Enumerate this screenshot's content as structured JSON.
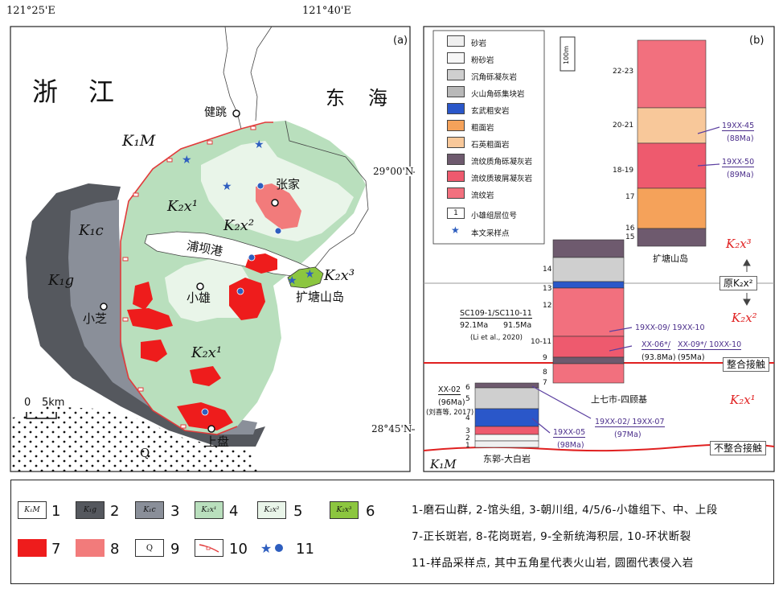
{
  "coords": {
    "lon_left": "121°25'E",
    "lon_right": "121°40'E",
    "lat_top": "29°00'N",
    "lat_bottom": "28°45'N"
  },
  "panel_a": {
    "label": "(a)",
    "province": [
      "浙",
      "江"
    ],
    "sea": [
      "东",
      "海"
    ],
    "places": {
      "jiantiao": "健跳",
      "zhangjia": "张家",
      "xiaozhi": "小芝",
      "xiaoxiong": "小雄",
      "shangpan": "上盘",
      "pubagang": "浦坝港",
      "kuotang": "扩塘山岛"
    },
    "units": {
      "K1M": "K₁M",
      "K1g": "K₁g",
      "K1c": "K₁c",
      "K2x1_top": "K₂x¹",
      "K2x1_bottom": "K₂x¹",
      "K2x2": "K₂x²",
      "K2x3": "K₂x³",
      "Q": "Q"
    },
    "scale": {
      "zero": "0",
      "length": "5km"
    }
  },
  "panel_b": {
    "label": "(b)",
    "legend": [
      {
        "name": "砂岩",
        "color": "#f0f0f0"
      },
      {
        "name": "粉砂岩",
        "color": "#f7f7f7"
      },
      {
        "name": "沉角砾凝灰岩",
        "color": "#cfcfcf"
      },
      {
        "name": "火山角砾集块岩",
        "color": "#b8b8b8"
      },
      {
        "name": "玄武粗安岩",
        "color": "#2a57c9"
      },
      {
        "name": "粗面岩",
        "color": "#f5a25a"
      },
      {
        "name": "石英粗面岩",
        "color": "#f8c89a"
      },
      {
        "name": "流纹质角砾凝灰岩",
        "color": "#6e5a6e"
      },
      {
        "name": "流纹质玻屑凝灰岩",
        "color": "#ee5a6e"
      },
      {
        "name": "流纹岩",
        "color": "#f2707e"
      },
      {
        "name": "小雄组层位号",
        "color": "#ffffff"
      },
      {
        "name": "本文采样点",
        "color": "#ffffff"
      }
    ],
    "legend_layer_mark": "1",
    "scale_bar": "100m",
    "col1_layers": [
      "1",
      "2",
      "3",
      "4",
      "5",
      "6",
      "7",
      "8",
      "9",
      "10-11",
      "12",
      "13",
      "14",
      "15",
      "16",
      "17",
      "18-19",
      "20-21",
      "22-23"
    ],
    "col1_caption": "东郭-大白岩",
    "col2_caption": "上七市-四顾基",
    "col3_caption": "扩塘山岛",
    "zones": {
      "x3": "K₂x³",
      "orig_x2": "原K₂x²",
      "x2": "K₂x²",
      "x1": "K₂x¹"
    },
    "contacts": {
      "conformable": "整合接触",
      "unconformable": "不整合接触"
    },
    "base_unit": "K₁M",
    "samples": {
      "s1": {
        "id": "19XX-45",
        "age": "(88Ma)"
      },
      "s2": {
        "id": "19XX-50",
        "age": "(89Ma)"
      },
      "s3": {
        "id": "19XX-09/ 19XX-10"
      },
      "s4": {
        "id_a": "XX-06*/",
        "age_a": "(93.8Ma)",
        "id_b": "XX-09*/ 10XX-10",
        "age_b": "(95Ma)"
      },
      "s5": {
        "id": "19XX-02/ 19XX-07",
        "age": "(97Ma)"
      },
      "s6": {
        "id": "19XX-05",
        "age": "(98Ma)"
      },
      "s7": {
        "id": "XX-02",
        "age": "(96Ma)",
        "ref": "(刘喜等, 2017)"
      },
      "s8": {
        "id": "SC109-1/SC110-11",
        "age_a": "92.1Ma",
        "age_b": "91.5Ma",
        "ref": "(Li et al., 2020)"
      }
    }
  },
  "bottom_legend": {
    "items": [
      {
        "num": "1",
        "label": "K₁M",
        "color": "#ffffff"
      },
      {
        "num": "2",
        "label": "K₁g",
        "color": "#55585e"
      },
      {
        "num": "3",
        "label": "K₁c",
        "color": "#8a8f99"
      },
      {
        "num": "4",
        "label": "K₂x¹",
        "color": "#b9dfbd"
      },
      {
        "num": "5",
        "label": "K₂x²",
        "color": "#e9f5e9"
      },
      {
        "num": "6",
        "label": "K₂x³",
        "color": "#8cc63f"
      },
      {
        "num": "7",
        "label": "",
        "color": "#ee1c1c"
      },
      {
        "num": "8",
        "label": "",
        "color": "#f27b7b"
      },
      {
        "num": "9",
        "label": "Q",
        "color": "#ffffff"
      },
      {
        "num": "10",
        "label": "",
        "color": "#ffffff"
      },
      {
        "num": "11",
        "label": "",
        "color": "#ffffff"
      }
    ],
    "desc": [
      "1-磨石山群, 2-馆头组, 3-朝川组, 4/5/6-小雄组下、中、上段",
      "7-正长斑岩, 8-花岗斑岩, 9-全新统海积层, 10-环状断裂",
      "11-样品采样点, 其中五角星代表火山岩, 圆圈代表侵入岩"
    ]
  }
}
